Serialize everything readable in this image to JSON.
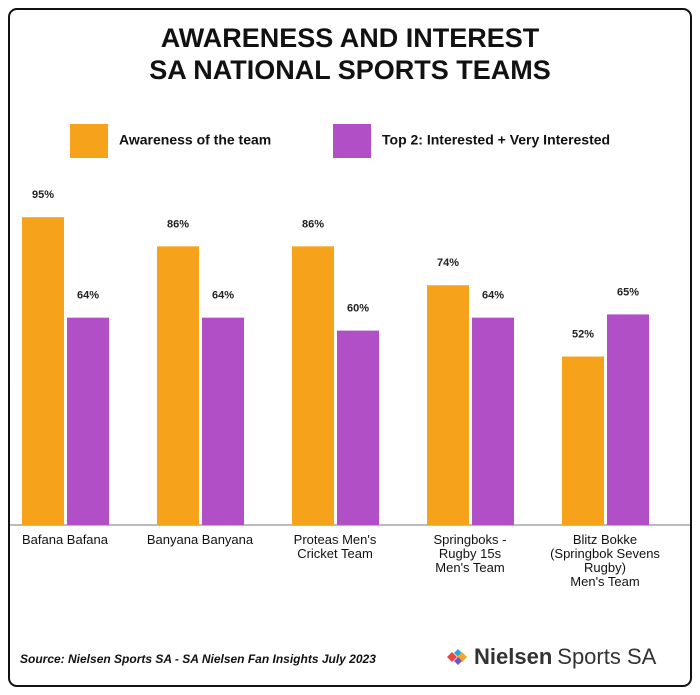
{
  "chart_data": {
    "type": "bar",
    "title": "AWARENESS AND INTEREST\nSA NATIONAL SPORTS TEAMS",
    "categories": [
      "Bafana Bafana",
      "Banyana Banyana",
      "Proteas Men's\nCricket Team",
      "Springboks -\nRugby 15s\nMen's Team",
      "Blitz Bokke\n(Springbok Sevens\nRugby)\nMen's Team"
    ],
    "series": [
      {
        "name": "Awareness of the team",
        "color": "#f7a21b",
        "values": [
          95,
          86,
          86,
          74,
          52
        ],
        "value_labels": [
          "95%",
          "86%",
          "86%",
          "74%",
          "52%"
        ]
      },
      {
        "name": "Top 2: Interested + Very Interested",
        "color": "#b04fc6",
        "values": [
          64,
          64,
          60,
          64,
          65
        ],
        "value_labels": [
          "64%",
          "64%",
          "60%",
          "64%",
          "65%"
        ]
      }
    ],
    "ylim": [
      0,
      100
    ],
    "source": "Source: Nielsen Sports SA - SA Nielsen Fan Insights July 2023",
    "brand": [
      "Nielsen",
      "Sports SA"
    ]
  }
}
